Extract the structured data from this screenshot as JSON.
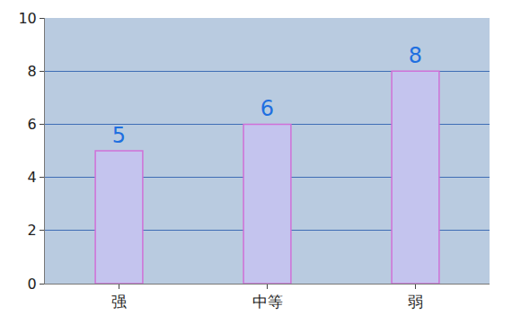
{
  "chart_data": {
    "type": "bar",
    "categories": [
      "强",
      "中等",
      "弱"
    ],
    "values": [
      5,
      6,
      8
    ],
    "color": "#c4c4ee",
    "ylim": [
      0,
      10
    ],
    "yticks": [
      0,
      2,
      4,
      6,
      8,
      10
    ],
    "grid": true,
    "data_labels": true
  }
}
